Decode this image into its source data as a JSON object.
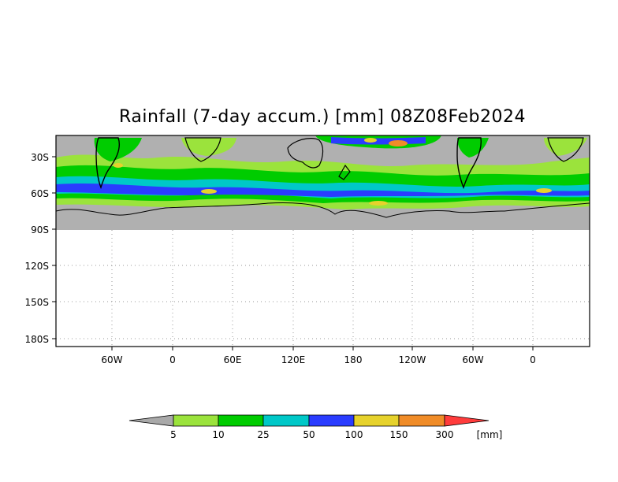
{
  "title": "Rainfall (7-day accum.) [mm] 08Z08Feb2024",
  "y_axis_labels": [
    "30S",
    "60S",
    "90S",
    "120S",
    "150S",
    "180S"
  ],
  "x_axis_labels": [
    "60W",
    "0",
    "60E",
    "120E",
    "180",
    "120W",
    "60W",
    "0"
  ],
  "colorbar": {
    "unit": "[mm]",
    "thresholds": [
      "5",
      "10",
      "25",
      "50",
      "100",
      "150",
      "300"
    ],
    "colors": [
      "#a9a9a9",
      "#9be33c",
      "#00cc00",
      "#00c8c8",
      "#2a3cff",
      "#e6d22c",
      "#f08c28",
      "#ff3c3c"
    ]
  },
  "map_colors": {
    "no_rain": "#b0b0b0",
    "ocean_bg": "#ffffff",
    "coast": "#000000"
  }
}
